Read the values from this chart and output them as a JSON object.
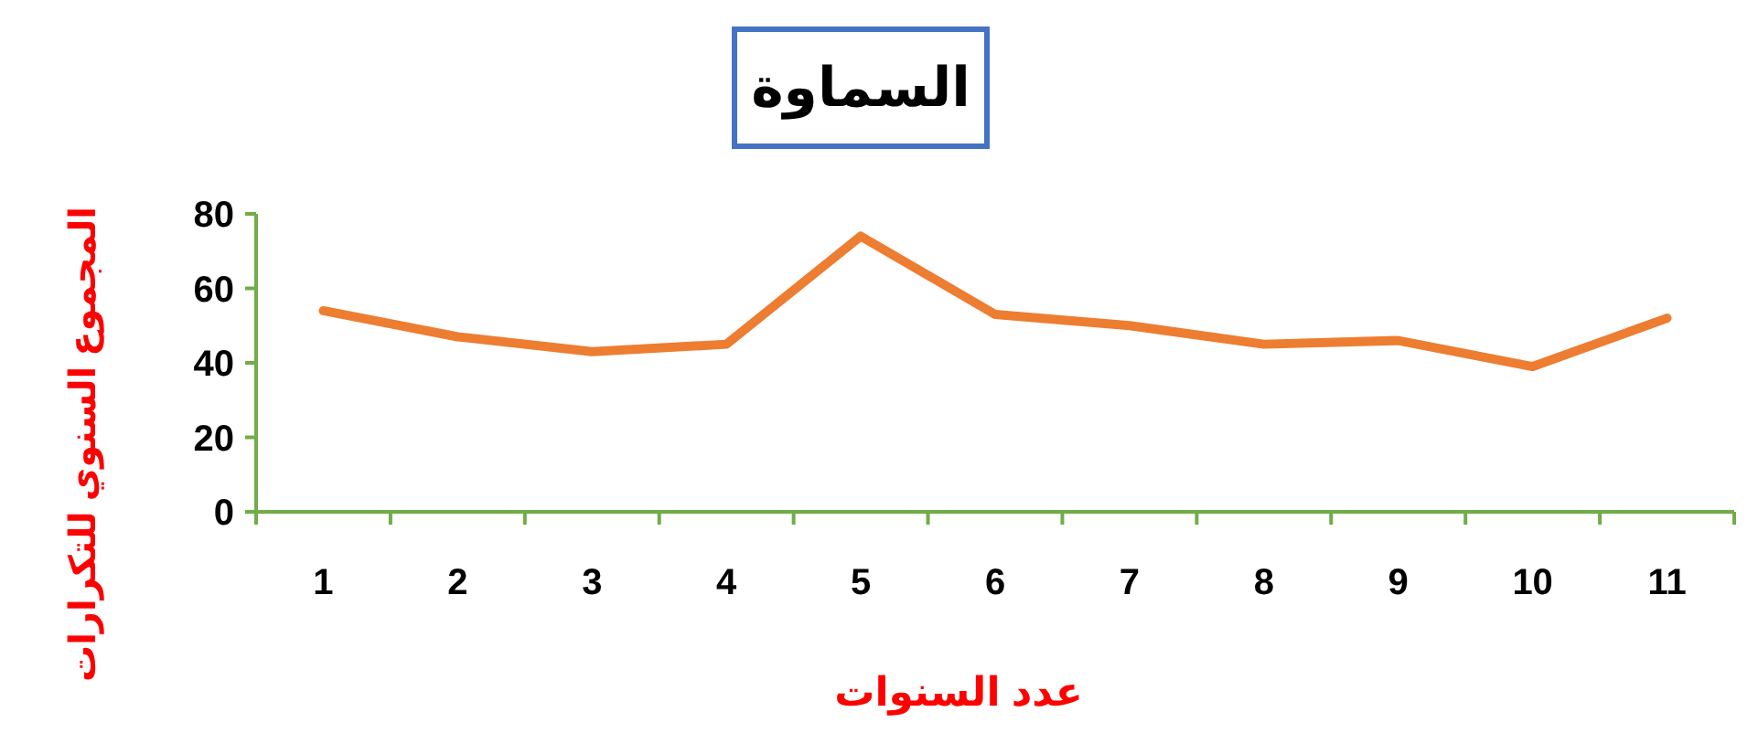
{
  "chart_data": {
    "type": "line",
    "title": "السماوة",
    "xlabel": "عدد السنوات",
    "ylabel": "المجموع السنوي للتكرارات",
    "categories": [
      "1",
      "2",
      "3",
      "4",
      "5",
      "6",
      "7",
      "8",
      "9",
      "10",
      "11"
    ],
    "series": [
      {
        "color": "#ed7d31",
        "values": [
          54,
          47,
          43,
          45,
          74,
          53,
          50,
          45,
          46,
          39,
          52
        ]
      }
    ],
    "ylim": [
      0,
      80
    ],
    "yticks": [
      0,
      20,
      40,
      60,
      80
    ],
    "grid": false,
    "marker": "none",
    "line_style": "solid"
  }
}
